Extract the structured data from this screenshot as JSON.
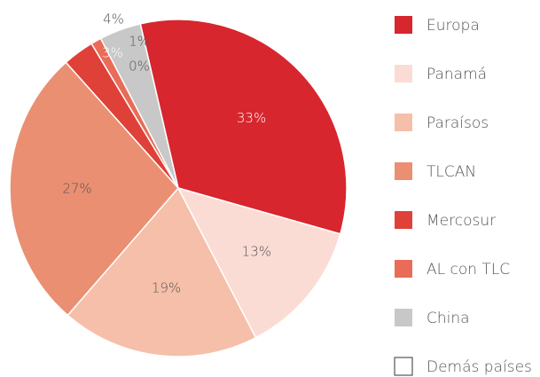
{
  "chart_data": {
    "type": "pie",
    "categories": [
      "Europa",
      "Panamá",
      "Paraísos",
      "TLCAN",
      "Mercosur",
      "AL con TLC",
      "China",
      "Demás países"
    ],
    "values": [
      33,
      13,
      19,
      27,
      3,
      1,
      4,
      0
    ],
    "value_labels": [
      "33%",
      "13%",
      "19%",
      "27%",
      "3%",
      "1%",
      "4%",
      "0%"
    ],
    "colors": [
      "#d7262e",
      "#fbdcd4",
      "#f6bfa9",
      "#ea8f72",
      "#df4038",
      "#e96c58",
      "#c8c8c8",
      "#ffffff"
    ],
    "legend": "right"
  }
}
